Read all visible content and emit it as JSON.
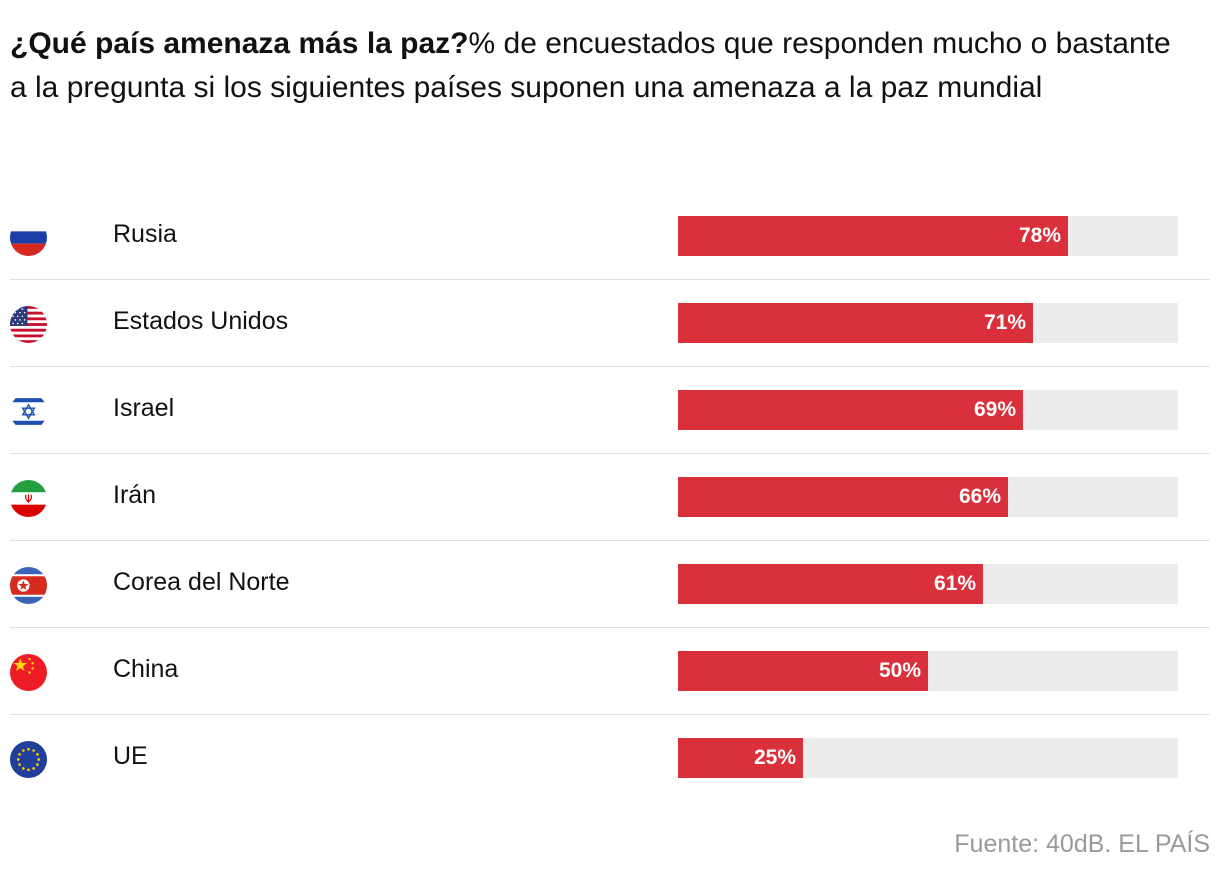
{
  "title": {
    "bold": "¿Qué país amenaza más la paz?",
    "rest": "% de encuestados que responden mucho o bastante a la pregunta si los siguientes países suponen una amenaza a la paz mundial"
  },
  "chart_data": {
    "type": "bar",
    "orientation": "horizontal",
    "categories": [
      "Rusia",
      "Estados Unidos",
      "Israel",
      "Irán",
      "Corea del Norte",
      "China",
      "UE"
    ],
    "values": [
      78,
      71,
      69,
      66,
      61,
      50,
      25
    ],
    "value_labels": [
      "78%",
      "71%",
      "69%",
      "66%",
      "61%",
      "50%",
      "25%"
    ],
    "flags": [
      "russia-flag",
      "usa-flag",
      "israel-flag",
      "iran-flag",
      "north-korea-flag",
      "china-flag",
      "eu-flag"
    ],
    "xlim": [
      0,
      100
    ],
    "unit": "%",
    "bar_color": "#d9303c",
    "track_color": "#ececec"
  },
  "source": "Fuente: 40dB. EL PAÍS"
}
